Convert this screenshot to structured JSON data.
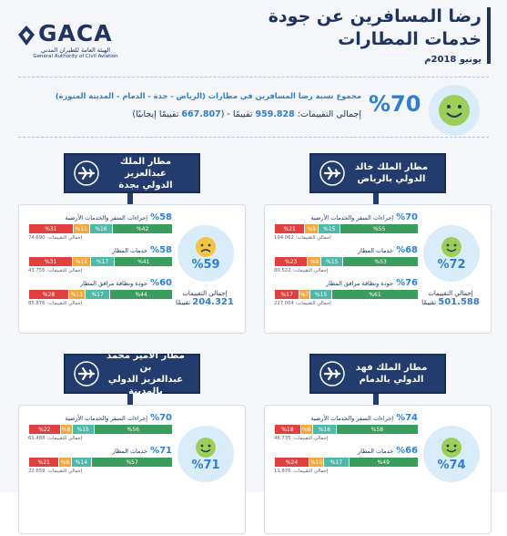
{
  "header": {
    "title_lines": [
      "رضا المسافرين عن جودة",
      "خدمات المطارات"
    ],
    "date": "يونيو 2018م",
    "logo": {
      "name": "GACA",
      "arabic": "الهيئة العامة للطيران المدني",
      "english": "General Authority of Civil Aviation"
    }
  },
  "summary": {
    "percent": "%70",
    "description": "مجموع نسبة رضا المسافرين في مطارات (الرياض - جدة - الدمام - المدينة المنورة)",
    "totals": {
      "prefix": "إجمالي التقييمات:",
      "total": "959.828",
      "middle": "تقييمًا - (",
      "positive": "667.807",
      "suffix": "تقييمًا إيجابيًا)"
    }
  },
  "segment_colors": [
    "#3a9d5d",
    "#4dbaa9",
    "#f4a73a",
    "#e2403f"
  ],
  "airports": [
    {
      "name_lines": [
        "مطار الملك خالد",
        "الدولي بالرياض"
      ],
      "percent": "%72",
      "total_label": "إجمالي التقييمات",
      "total": "501.588",
      "total_unit": "تقييمًا",
      "metrics": [
        {
          "percent": "%70",
          "label": "إجراءات السفر والخدمات الأرضية",
          "segments": [
            55,
            15,
            9,
            21
          ],
          "segment_labels": [
            "%55",
            "%15",
            "%9",
            "%21"
          ],
          "ratings": "إجمالي التقييمات: 194.062"
        },
        {
          "percent": "%68",
          "label": "خدمات المطار",
          "segments": [
            53,
            15,
            9,
            23
          ],
          "segment_labels": [
            "%53",
            "%15",
            "%9",
            "%23"
          ],
          "ratings": "إجمالي التقييمات: 80.522"
        },
        {
          "percent": "%76",
          "label": "جودة ونظافة مرافق المطار",
          "segments": [
            61,
            15,
            7,
            17
          ],
          "segment_labels": [
            "%61",
            "%15",
            "%7",
            "%17"
          ],
          "ratings": "إجمالي التقييمات: 227.004"
        }
      ]
    },
    {
      "name_lines": [
        "مطار الملك عبدالعزيز",
        "الدولي بجدة"
      ],
      "percent": "%59",
      "total_label": "إجمالي التقييمات",
      "total": "204.321",
      "total_unit": "تقييمًا",
      "metrics": [
        {
          "percent": "%58",
          "label": "إجراءات السفر والخدمات الأرضية",
          "segments": [
            42,
            16,
            11,
            31
          ],
          "segment_labels": [
            "%42",
            "%16",
            "%11",
            "%31"
          ],
          "ratings": "إجمالي التقييمات: 74.690"
        },
        {
          "percent": "%58",
          "label": "خدمات المطار",
          "segments": [
            41,
            17,
            12,
            31
          ],
          "segment_labels": [
            "%41",
            "%17",
            "%12",
            "%31"
          ],
          "ratings": "إجمالي التقييمات: 43.755"
        },
        {
          "percent": "%60",
          "label": "جودة ونظافة مرافق المطار",
          "segments": [
            44,
            17,
            11,
            28
          ],
          "segment_labels": [
            "%44",
            "%17",
            "%11",
            "%28"
          ],
          "ratings": "إجمالي التقييمات: 85.876"
        }
      ]
    },
    {
      "name_lines": [
        "مطار الملك فهد",
        "الدولي بالدمام"
      ],
      "percent": "%74",
      "metrics": [
        {
          "percent": "%74",
          "label": "إجراءات السفر والخدمات الأرضية",
          "segments": [
            58,
            16,
            8,
            18
          ],
          "segment_labels": [
            "%58",
            "%16",
            "%8",
            "%18"
          ],
          "ratings": "إجمالي التقييمات: 46.735"
        },
        {
          "percent": "%66",
          "label": "خدمات المطار",
          "segments": [
            49,
            17,
            10,
            24
          ],
          "segment_labels": [
            "%49",
            "%17",
            "%10",
            "%24"
          ],
          "ratings": "إجمالي التقييمات: 11.876"
        }
      ]
    },
    {
      "name_lines": [
        "مطار الأمير محمد بن",
        "عبدالعزيز الدولي بالمدينة"
      ],
      "percent": "%71",
      "metrics": [
        {
          "percent": "%70",
          "label": "إجراءات السفر والخدمات الأرضية",
          "segments": [
            56,
            15,
            8,
            22
          ],
          "segment_labels": [
            "%56",
            "%15",
            "%8",
            "%22"
          ],
          "ratings": "إجمالي التقييمات: 61.488"
        },
        {
          "percent": "%71",
          "label": "خدمات المطار",
          "segments": [
            57,
            14,
            8,
            21
          ],
          "segment_labels": [
            "%57",
            "%14",
            "%8",
            "%21"
          ],
          "ratings": "إجمالي التقييمات: 22.659"
        }
      ]
    }
  ]
}
